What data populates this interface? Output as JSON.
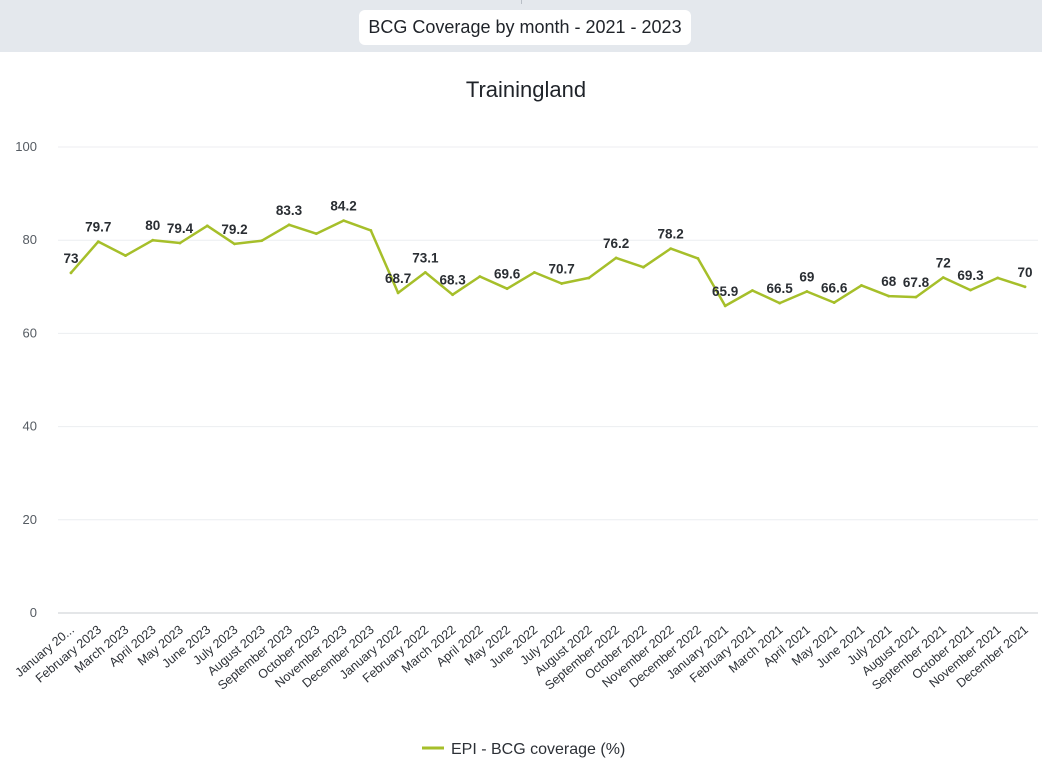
{
  "header": {
    "title": "BCG Coverage by month - 2021 - 2023"
  },
  "chart_data": {
    "type": "line",
    "title": "Trainingland",
    "xlabel": "",
    "ylabel": "",
    "ylim": [
      0,
      100
    ],
    "yticks": [
      0,
      20,
      40,
      60,
      80,
      100
    ],
    "grid": true,
    "legend_position": "bottom",
    "categories": [
      "January 20...",
      "February 2023",
      "March 2023",
      "April 2023",
      "May 2023",
      "June 2023",
      "July 2023",
      "August 2023",
      "September 2023",
      "October 2023",
      "November 2023",
      "December 2023",
      "January 2022",
      "February 2022",
      "March 2022",
      "April 2022",
      "May 2022",
      "June 2022",
      "July 2022",
      "August 2022",
      "September 2022",
      "October 2022",
      "November 2022",
      "December 2022",
      "January 2021",
      "February 2021",
      "March 2021",
      "April 2021",
      "May 2021",
      "June 2021",
      "July 2021",
      "August 2021",
      "September 2021",
      "October 2021",
      "November 2021",
      "December 2021"
    ],
    "series": [
      {
        "name": "EPI - BCG coverage (%)",
        "color": "#a6bf2a",
        "values": [
          73,
          79.7,
          76.7,
          80,
          79.4,
          83.1,
          79.2,
          79.9,
          83.3,
          81.4,
          84.2,
          82.1,
          68.7,
          73.1,
          68.3,
          72.2,
          69.6,
          73.1,
          70.7,
          71.9,
          76.2,
          74.2,
          78.2,
          76.1,
          65.9,
          69.2,
          66.5,
          69,
          66.6,
          70.3,
          68,
          67.8,
          72,
          69.3,
          71.9,
          70
        ],
        "labels": [
          "73",
          "79.7",
          "",
          "80",
          "79.4",
          "",
          "79.2",
          "",
          "83.3",
          "",
          "84.2",
          "",
          "68.7",
          "73.1",
          "68.3",
          "",
          "69.6",
          "",
          "70.7",
          "",
          "76.2",
          "",
          "78.2",
          "",
          "65.9",
          "",
          "66.5",
          "69",
          "66.6",
          "",
          "68",
          "67.8",
          "72",
          "69.3",
          "",
          "70"
        ]
      }
    ]
  }
}
